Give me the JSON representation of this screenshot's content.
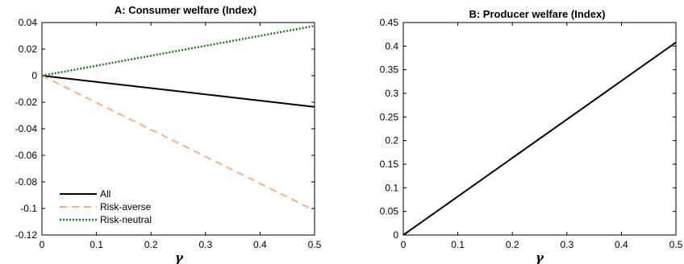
{
  "chart_data": [
    {
      "type": "line",
      "title": "A: Consumer welfare (Index)",
      "xlabel": "γ",
      "ylabel": "",
      "xlim": [
        0,
        0.5
      ],
      "ylim": [
        -0.12,
        0.04
      ],
      "xticks": [
        0,
        0.1,
        0.2,
        0.3,
        0.4,
        0.5
      ],
      "xtick_labels": [
        "0",
        "0.1",
        "0.2",
        "0.3",
        "0.4",
        "0.5"
      ],
      "yticks": [
        0.04,
        0.02,
        0,
        -0.02,
        -0.04,
        -0.06,
        -0.08,
        -0.1,
        -0.12
      ],
      "ytick_labels": [
        "0.04",
        "0.02",
        "0",
        "-0.02",
        "-0.04",
        "-0.06",
        "-0.08",
        "-0.1",
        "-0.12"
      ],
      "grid": false,
      "legend": "bottom-left",
      "series": [
        {
          "name": "All",
          "x": [
            0,
            0.5
          ],
          "y": [
            0,
            -0.0235
          ],
          "color": "#000000",
          "style": "solid"
        },
        {
          "name": "Risk-averse",
          "x": [
            0,
            0.5
          ],
          "y": [
            0,
            -0.1015
          ],
          "color": "#F4B27A",
          "style": "dashed"
        },
        {
          "name": "Risk-neutral",
          "x": [
            0,
            0.5
          ],
          "y": [
            0,
            0.0375
          ],
          "color": "#1A7A1A",
          "style": "dotted"
        }
      ]
    },
    {
      "type": "line",
      "title": "B: Producer welfare (Index)",
      "xlabel": "γ",
      "ylabel": "",
      "xlim": [
        0,
        0.5
      ],
      "ylim": [
        0,
        0.45
      ],
      "xticks": [
        0,
        0.1,
        0.2,
        0.3,
        0.4,
        0.5
      ],
      "xtick_labels": [
        "0",
        "0.1",
        "0.2",
        "0.3",
        "0.4",
        "0.5"
      ],
      "yticks": [
        0.45,
        0.4,
        0.35,
        0.3,
        0.25,
        0.2,
        0.15,
        0.1,
        0.05,
        0
      ],
      "ytick_labels": [
        "0.45",
        "0.4",
        "0.35",
        "0.3",
        "0.25",
        "0.2",
        "0.15",
        "0.1",
        "0.05",
        "0"
      ],
      "grid": false,
      "series": [
        {
          "x": [
            0,
            0.5
          ],
          "y": [
            0,
            0.408
          ],
          "color": "#000000",
          "style": "solid"
        }
      ]
    }
  ]
}
